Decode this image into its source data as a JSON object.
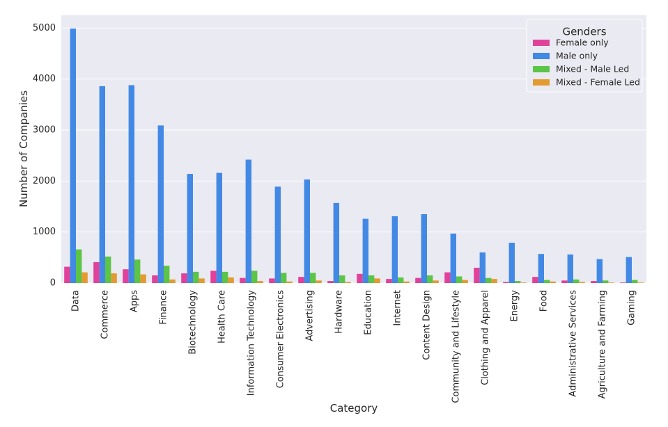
{
  "chart_data": {
    "type": "bar",
    "xlabel": "Category",
    "ylabel": "Number of Companies",
    "ylim": [
      0,
      5250
    ],
    "yticks": [
      0,
      1000,
      2000,
      3000,
      4000,
      5000
    ],
    "grid": true,
    "legend": {
      "title": "Genders",
      "placement": "top-right"
    },
    "categories": [
      "Data",
      "Commerce",
      "Apps",
      "Finance",
      "Biotechnology",
      "Health Care",
      "Information Technology",
      "Consumer Electronics",
      "Advertising",
      "Hardware",
      "Education",
      "Internet",
      "Content Design",
      "Community and Lifestyle",
      "Clothing and Apparel",
      "Energy",
      "Food",
      "Administrative Services",
      "Agriculture and Farming",
      "Gaming"
    ],
    "series": [
      {
        "name": "Female only",
        "color": "#e0429b",
        "values": [
          320,
          410,
          270,
          150,
          190,
          240,
          100,
          90,
          120,
          40,
          180,
          80,
          100,
          210,
          300,
          20,
          120,
          50,
          40,
          10
        ]
      },
      {
        "name": "Male only",
        "color": "#4289e5",
        "values": [
          4990,
          3860,
          3880,
          3090,
          2140,
          2160,
          2420,
          1890,
          2030,
          1570,
          1260,
          1310,
          1350,
          970,
          600,
          790,
          570,
          560,
          470,
          510
        ]
      },
      {
        "name": "Mixed - Male Led",
        "color": "#5cc447",
        "values": [
          660,
          520,
          460,
          340,
          220,
          220,
          240,
          200,
          200,
          150,
          150,
          110,
          150,
          130,
          100,
          40,
          60,
          70,
          50,
          60
        ]
      },
      {
        "name": "Mixed - Female Led",
        "color": "#e39b31",
        "values": [
          210,
          190,
          170,
          70,
          90,
          110,
          40,
          30,
          50,
          20,
          90,
          30,
          50,
          60,
          80,
          10,
          30,
          20,
          10,
          10
        ]
      }
    ]
  }
}
